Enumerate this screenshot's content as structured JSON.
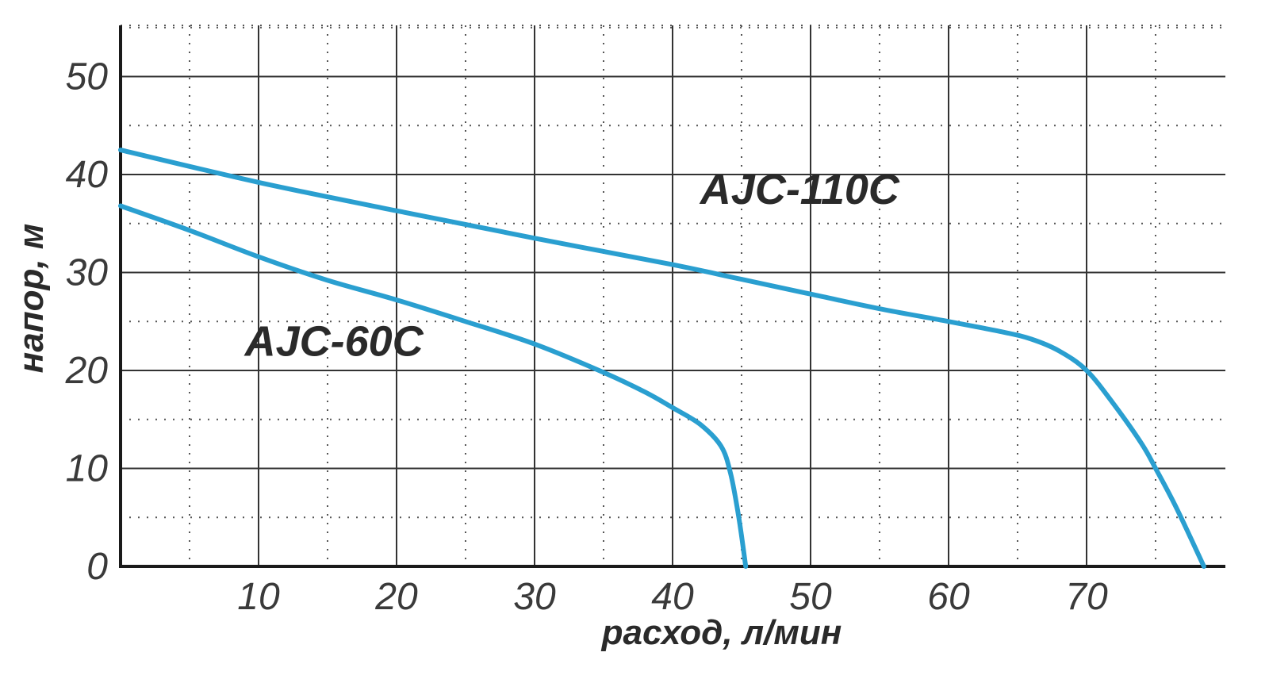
{
  "chart_data": {
    "type": "line",
    "title": "",
    "xlabel": "расход, л/мин",
    "ylabel": "напор, м",
    "xlim": [
      0,
      80
    ],
    "ylim": [
      0,
      55
    ],
    "x_ticks": [
      10,
      20,
      30,
      40,
      50,
      60,
      70
    ],
    "y_ticks": [
      0,
      10,
      20,
      30,
      40,
      50
    ],
    "x_minor_step": 5,
    "y_minor_step": 5,
    "grid": true,
    "line_color": "#2a9fd0",
    "series": [
      {
        "name": "AJC-110C",
        "label_at": [
          42,
          37
        ],
        "points": [
          [
            0,
            42.5
          ],
          [
            10,
            39.2
          ],
          [
            20,
            36.3
          ],
          [
            30,
            33.5
          ],
          [
            40,
            30.8
          ],
          [
            45,
            29.3
          ],
          [
            50,
            27.8
          ],
          [
            55,
            26.3
          ],
          [
            60,
            25.0
          ],
          [
            64,
            23.9
          ],
          [
            66,
            23.2
          ],
          [
            68,
            22.0
          ],
          [
            70,
            20.0
          ],
          [
            72,
            16.5
          ],
          [
            74,
            12.5
          ],
          [
            75,
            10.0
          ],
          [
            76.5,
            6.0
          ],
          [
            78.5,
            0
          ]
        ]
      },
      {
        "name": "AJC-60C",
        "label_at": [
          9,
          21.5
        ],
        "points": [
          [
            0,
            36.8
          ],
          [
            5,
            34.3
          ],
          [
            10,
            31.6
          ],
          [
            15,
            29.2
          ],
          [
            20,
            27.2
          ],
          [
            25,
            25.0
          ],
          [
            30,
            22.7
          ],
          [
            35,
            19.8
          ],
          [
            38,
            17.8
          ],
          [
            40,
            16.2
          ],
          [
            42,
            14.5
          ],
          [
            43.5,
            12.3
          ],
          [
            44.2,
            9.5
          ],
          [
            44.8,
            5.0
          ],
          [
            45.3,
            0
          ]
        ]
      }
    ]
  }
}
